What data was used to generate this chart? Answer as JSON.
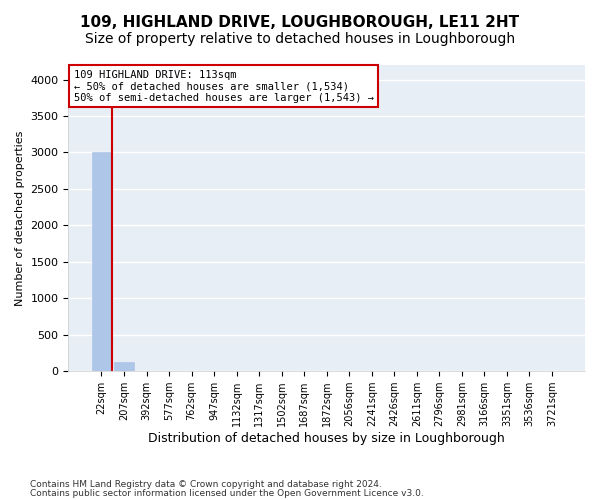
{
  "title": "109, HIGHLAND DRIVE, LOUGHBOROUGH, LE11 2HT",
  "subtitle": "Size of property relative to detached houses in Loughborough",
  "xlabel": "Distribution of detached houses by size in Loughborough",
  "ylabel": "Number of detached properties",
  "footnote1": "Contains HM Land Registry data © Crown copyright and database right 2024.",
  "footnote2": "Contains public sector information licensed under the Open Government Licence v3.0.",
  "bin_labels": [
    "22sqm",
    "207sqm",
    "392sqm",
    "577sqm",
    "762sqm",
    "947sqm",
    "1132sqm",
    "1317sqm",
    "1502sqm",
    "1687sqm",
    "1872sqm",
    "2056sqm",
    "2241sqm",
    "2426sqm",
    "2611sqm",
    "2796sqm",
    "2981sqm",
    "3166sqm",
    "3351sqm",
    "3536sqm",
    "3721sqm"
  ],
  "bar_heights": [
    3000,
    120,
    0,
    0,
    0,
    0,
    0,
    0,
    0,
    0,
    0,
    0,
    0,
    0,
    0,
    0,
    0,
    0,
    0,
    0,
    0
  ],
  "bar_color": "#aec6e8",
  "background_color": "#e8eef5",
  "grid_color": "#ffffff",
  "annotation_line1": "109 HIGHLAND DRIVE: 113sqm",
  "annotation_line2": "← 50% of detached houses are smaller (1,534)",
  "annotation_line3": "50% of semi-detached houses are larger (1,543) →",
  "red_line_x": 0.48,
  "ylim": [
    0,
    4200
  ],
  "yticks": [
    0,
    500,
    1000,
    1500,
    2000,
    2500,
    3000,
    3500,
    4000
  ],
  "annotation_box_facecolor": "#ffffff",
  "annotation_box_edgecolor": "#cc0000",
  "red_line_color": "#cc0000",
  "title_fontsize": 11,
  "subtitle_fontsize": 10
}
